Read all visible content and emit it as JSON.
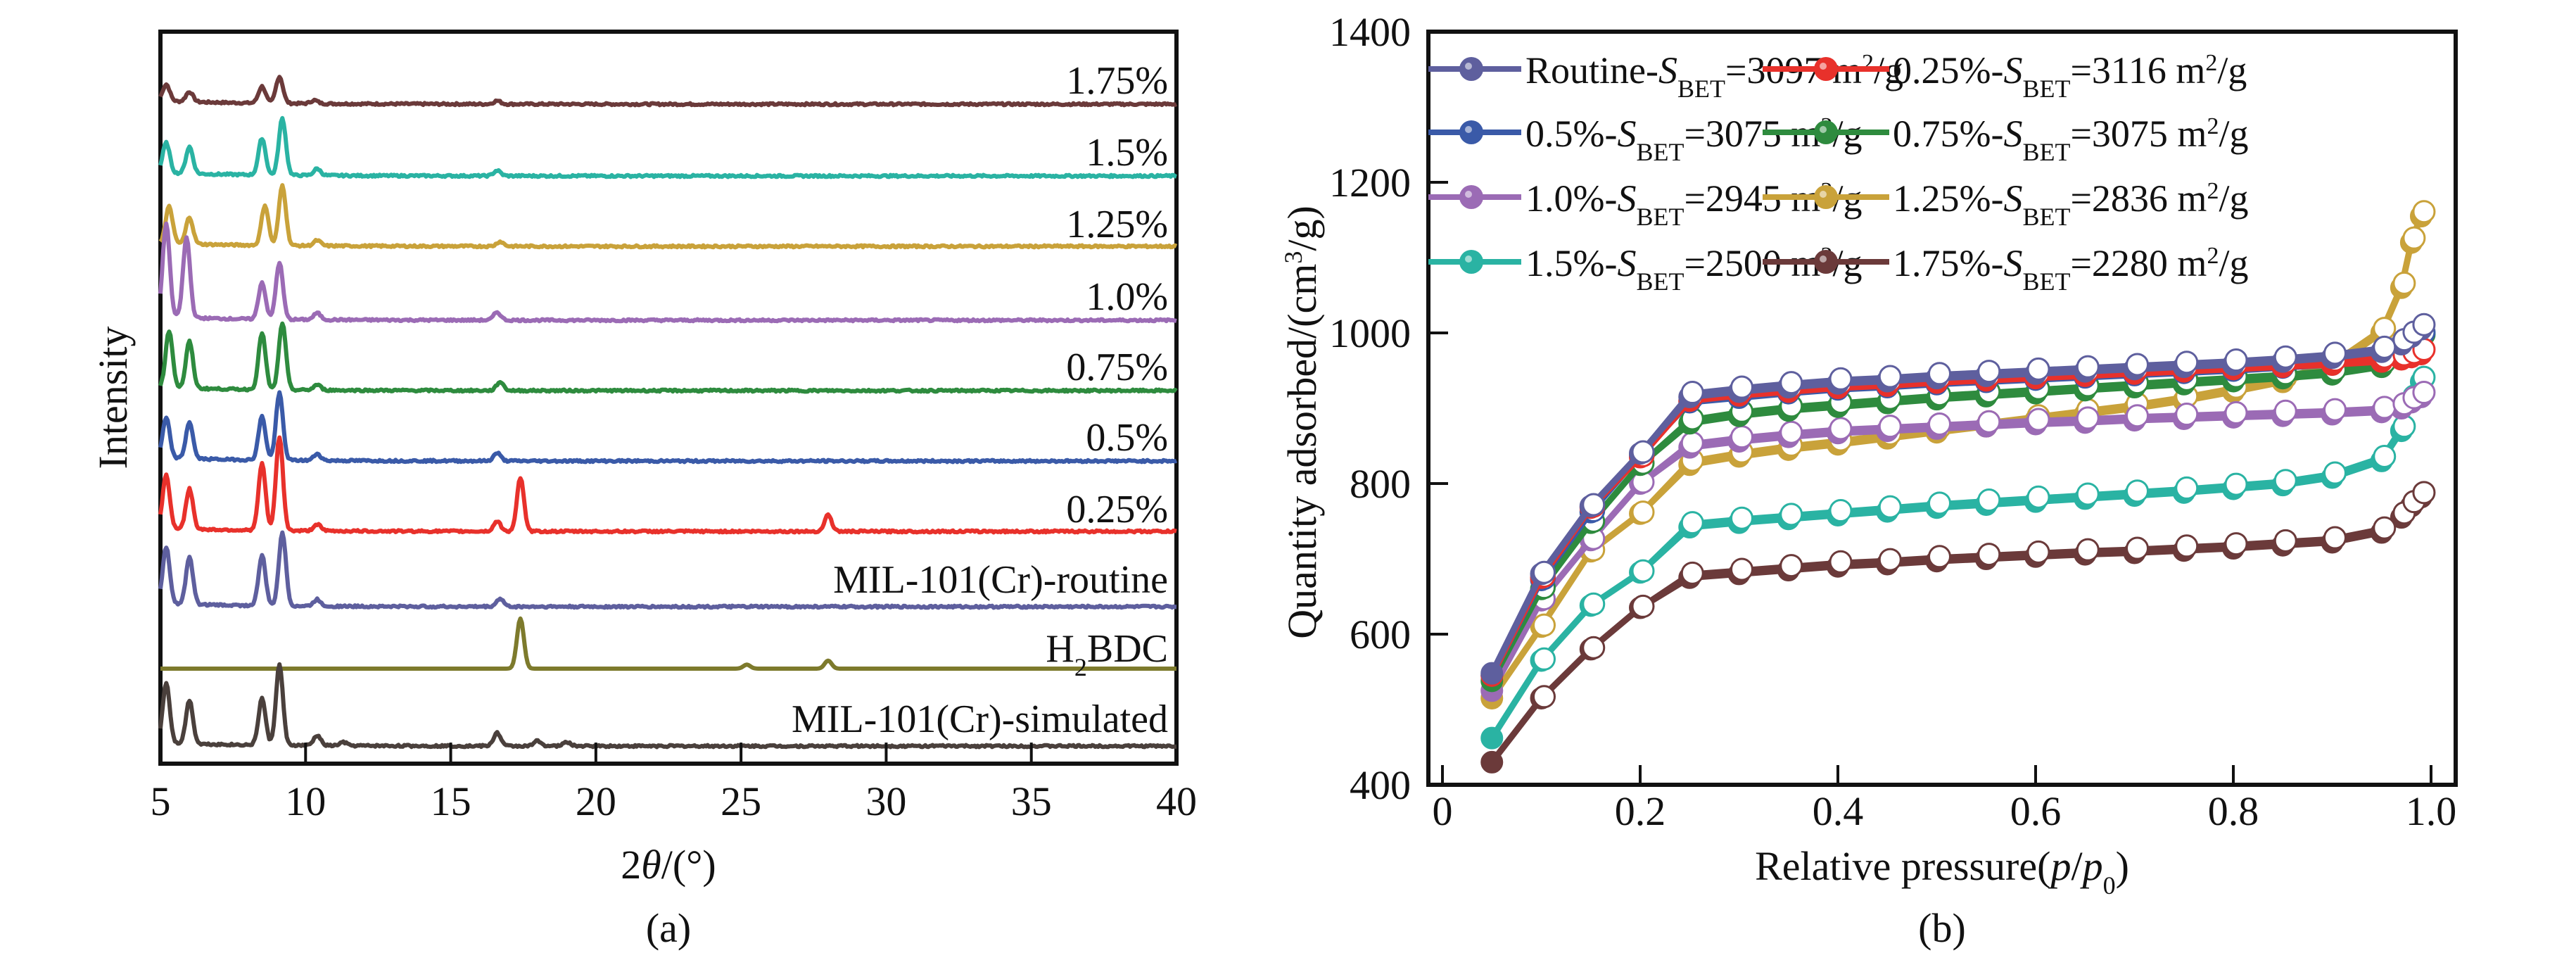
{
  "chart_data": [
    {
      "panel": "(a)",
      "type": "line",
      "title": "",
      "xlabel": "2θ/(°)",
      "xlabel_parts": {
        "prefix": "2",
        "italic": "θ",
        "suffix": "/(°)"
      },
      "ylabel": "Intensity",
      "xlim": [
        5,
        40
      ],
      "xticks": [
        5,
        10,
        15,
        20,
        25,
        30,
        35,
        40
      ],
      "yticks": [],
      "grid": false,
      "legend": "inline labels at right end of each trace",
      "note": "Stacked XRD patterns (offset vertically, arbitrary intensity units). Peaks listed as [2θ, relative height 0-1].",
      "series": [
        {
          "name": "1.75%",
          "color": "#6b3a3a",
          "peaks": [
            [
              5.2,
              0.25
            ],
            [
              6.0,
              0.15
            ],
            [
              8.5,
              0.25
            ],
            [
              9.1,
              0.4
            ],
            [
              10.3,
              0.05
            ],
            [
              16.6,
              0.05
            ]
          ]
        },
        {
          "name": "1.5%",
          "color": "#2ab3a3",
          "peaks": [
            [
              5.2,
              0.45
            ],
            [
              6.0,
              0.4
            ],
            [
              8.5,
              0.55
            ],
            [
              9.2,
              0.85
            ],
            [
              10.4,
              0.1
            ],
            [
              16.6,
              0.08
            ]
          ]
        },
        {
          "name": "1.25%",
          "color": "#c9a23a",
          "peaks": [
            [
              5.3,
              0.55
            ],
            [
              6.0,
              0.4
            ],
            [
              8.6,
              0.6
            ],
            [
              9.2,
              0.9
            ],
            [
              10.4,
              0.08
            ],
            [
              16.7,
              0.07
            ]
          ]
        },
        {
          "name": "1.0%",
          "color": "#9b6bb5",
          "peaks": [
            [
              5.2,
              1.4
            ],
            [
              5.9,
              1.2
            ],
            [
              8.5,
              0.55
            ],
            [
              9.1,
              0.85
            ],
            [
              10.4,
              0.1
            ],
            [
              16.6,
              0.12
            ]
          ]
        },
        {
          "name": "0.75%",
          "color": "#2e8b3e",
          "peaks": [
            [
              5.3,
              0.85
            ],
            [
              6.0,
              0.7
            ],
            [
              8.5,
              0.85
            ],
            [
              9.2,
              1.0
            ],
            [
              10.4,
              0.08
            ],
            [
              16.7,
              0.13
            ]
          ]
        },
        {
          "name": "0.5%",
          "color": "#3a5aa8",
          "peaks": [
            [
              5.2,
              0.6
            ],
            [
              6.0,
              0.55
            ],
            [
              8.5,
              0.65
            ],
            [
              9.1,
              1.0
            ],
            [
              10.4,
              0.1
            ],
            [
              16.6,
              0.12
            ]
          ]
        },
        {
          "name": "0.25%",
          "color": "#e8312b",
          "peaks": [
            [
              5.2,
              0.8
            ],
            [
              6.0,
              0.6
            ],
            [
              8.5,
              1.0
            ],
            [
              9.1,
              1.4
            ],
            [
              10.4,
              0.1
            ],
            [
              16.6,
              0.15
            ],
            [
              17.4,
              0.8
            ],
            [
              28.0,
              0.25
            ]
          ]
        },
        {
          "name": "MIL-101(Cr)-routine",
          "color": "#5e5f9e",
          "peaks": [
            [
              5.2,
              0.85
            ],
            [
              6.0,
              0.7
            ],
            [
              8.5,
              0.75
            ],
            [
              9.2,
              1.1
            ],
            [
              10.4,
              0.1
            ],
            [
              16.7,
              0.12
            ]
          ]
        },
        {
          "name": "H2BDC",
          "label_parts": {
            "pre": "H",
            "sub": "2",
            "post": "BDC"
          },
          "color": "#7d7a2c",
          "peaks": [
            [
              17.4,
              0.75
            ],
            [
              25.2,
              0.06
            ],
            [
              28.0,
              0.12
            ]
          ]
        },
        {
          "name": "MIL-101(Cr)-simulated",
          "color": "#4a403c",
          "peaks": [
            [
              5.2,
              0.9
            ],
            [
              6.0,
              0.65
            ],
            [
              8.5,
              0.7
            ],
            [
              9.1,
              1.2
            ],
            [
              10.4,
              0.15
            ],
            [
              11.3,
              0.05
            ],
            [
              16.6,
              0.2
            ],
            [
              18.0,
              0.08
            ],
            [
              19.0,
              0.06
            ]
          ]
        }
      ]
    },
    {
      "panel": "(b)",
      "type": "line",
      "title": "",
      "xlabel": "Relative pressure(p/p0)",
      "xlabel_parts": {
        "pre": "Relative pressure(",
        "p1": "p",
        "slash": "/",
        "p2": "p",
        "sub": "0",
        "post": ")"
      },
      "ylabel": "Quantity adsorbed/(cm³/g)",
      "ylabel_parts": {
        "pre": "Quantity adsorbed/(cm",
        "sup": "3",
        "post": "/g)"
      },
      "xlim": [
        0,
        1.0
      ],
      "ylim": [
        400,
        1400
      ],
      "xticks": [
        0,
        0.2,
        0.4,
        0.6,
        0.8,
        1.0
      ],
      "xtick_labels": [
        "0",
        "0.2",
        "0.4",
        "0.6",
        "0.8",
        "1.0"
      ],
      "yticks": [
        400,
        600,
        800,
        1000,
        1200,
        1400
      ],
      "grid": false,
      "legend": "top-left, two columns",
      "note": "N2 adsorption (filled markers) / desorption (open markers) isotherms",
      "x": [
        0.05,
        0.1,
        0.15,
        0.2,
        0.25,
        0.3,
        0.35,
        0.4,
        0.45,
        0.5,
        0.55,
        0.6,
        0.65,
        0.7,
        0.75,
        0.8,
        0.85,
        0.9,
        0.95,
        0.97,
        0.98,
        0.99
      ],
      "series": [
        {
          "name": "Routine-SBET=3097 m²/g",
          "label_parts": {
            "pre": "Routine-",
            "S": "S",
            "sub": "BET",
            "post": "=3097 m",
            "sup": "2",
            "end": "/g"
          },
          "color": "#5e5f9e",
          "values": [
            548,
            680,
            770,
            840,
            915,
            922,
            928,
            933,
            936,
            940,
            943,
            946,
            949,
            952,
            955,
            958,
            962,
            967,
            975,
            985,
            995,
            1005
          ]
        },
        {
          "name": "0.25%-SBET=3116 m²/g",
          "label_parts": {
            "pre": "0.25%-",
            "S": "S",
            "sub": "BET",
            "post": "=3116 m",
            "sup": "2",
            "end": "/g"
          },
          "color": "#e8312b",
          "values": [
            545,
            675,
            768,
            835,
            910,
            917,
            922,
            927,
            930,
            934,
            937,
            940,
            943,
            946,
            949,
            952,
            955,
            958,
            962,
            965,
            968,
            972
          ]
        },
        {
          "name": "0.5%-SBET=3075 m²/g",
          "label_parts": {
            "pre": "0.5%-",
            "S": "S",
            "sub": "BET",
            "post": "=3075 m",
            "sup": "2",
            "end": "/g"
          },
          "color": "#3a5aa8",
          "values": [
            545,
            672,
            762,
            838,
            908,
            914,
            920,
            925,
            928,
            932,
            935,
            938,
            941,
            944,
            947,
            950,
            954,
            958,
            965,
            975,
            985,
            995
          ]
        },
        {
          "name": "0.75%-SBET=3075 m²/g",
          "label_parts": {
            "pre": "0.75%-",
            "S": "S",
            "sub": "BET",
            "post": "=3075 m",
            "sup": "2",
            "end": "/g"
          },
          "color": "#2e8b3e",
          "values": [
            538,
            660,
            748,
            825,
            880,
            890,
            897,
            902,
            907,
            912,
            916,
            920,
            924,
            928,
            932,
            936,
            940,
            945,
            955,
            968,
            980,
            992
          ]
        },
        {
          "name": "1.0%-SBET=2945 m²/g",
          "label_parts": {
            "pre": "1.0%-",
            "S": "S",
            "sub": "BET",
            "post": "=2945 m",
            "sup": "2",
            "end": "/g"
          },
          "color": "#9b6bb5",
          "values": [
            525,
            645,
            725,
            800,
            848,
            856,
            862,
            867,
            870,
            873,
            876,
            879,
            881,
            884,
            886,
            888,
            890,
            892,
            895,
            900,
            908,
            915
          ]
        },
        {
          "name": "1.25%-SBET=2836 m²/g",
          "label_parts": {
            "pre": "1.25%-",
            "S": "S",
            "sub": "BET",
            "post": "=2836 m",
            "sup": "2",
            "end": "/g"
          },
          "color": "#c9a23a",
          "values": [
            515,
            610,
            710,
            760,
            825,
            836,
            845,
            852,
            860,
            868,
            876,
            884,
            892,
            900,
            910,
            922,
            935,
            955,
            1000,
            1060,
            1120,
            1155
          ]
        },
        {
          "name": "1.5%-SBET=2500 m²/g",
          "label_parts": {
            "pre": "1.5%-",
            "S": "S",
            "sub": "BET",
            "post": "=2500 m",
            "sup": "2",
            "end": "/g"
          },
          "color": "#2ab3a3",
          "values": [
            462,
            565,
            638,
            682,
            742,
            748,
            753,
            758,
            763,
            768,
            772,
            776,
            780,
            784,
            788,
            793,
            798,
            808,
            830,
            870,
            910,
            935
          ]
        },
        {
          "name": "1.75%-SBET=2280 m²/g",
          "label_parts": {
            "pre": "1.75%-",
            "S": "S",
            "sub": "BET",
            "post": "=2280 m",
            "sup": "2",
            "end": "/g"
          },
          "color": "#6b3a3a",
          "values": [
            430,
            515,
            580,
            635,
            675,
            680,
            685,
            690,
            693,
            697,
            700,
            703,
            706,
            708,
            711,
            714,
            718,
            722,
            735,
            755,
            770,
            782
          ]
        }
      ]
    }
  ],
  "panel_labels": {
    "a": "(a)",
    "b": "(b)"
  }
}
